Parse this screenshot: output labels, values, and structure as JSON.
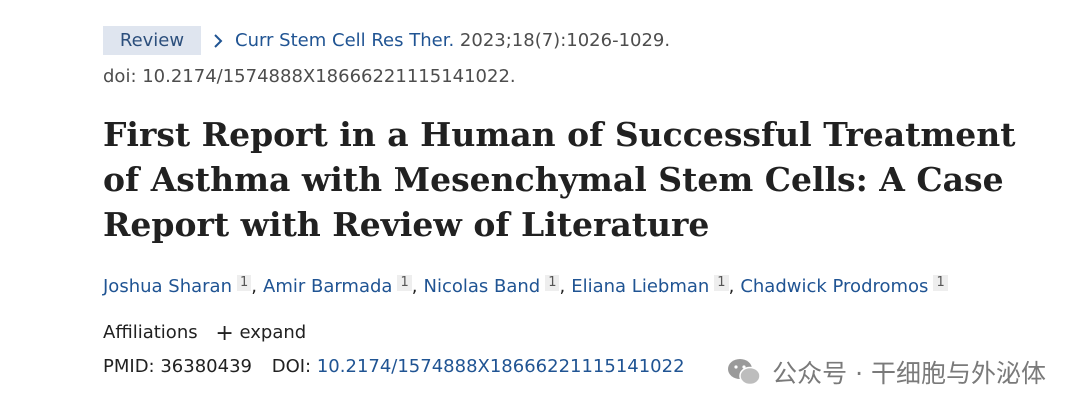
{
  "header": {
    "badge": "Review",
    "journal": "Curr Stem Cell Res Ther.",
    "citation": "2023;18(7):1026-1029.",
    "doi_line": "doi: 10.2174/1574888X18666221115141022."
  },
  "title": "First Report in a Human of Successful Treatment of Asthma with Mesenchymal Stem Cells: A Case Report with Review of Literature",
  "authors": {
    "separator": ",",
    "list": [
      {
        "name": "Joshua Sharan",
        "affiliation": "1"
      },
      {
        "name": "Amir Barmada",
        "affiliation": "1"
      },
      {
        "name": "Nicolas Band",
        "affiliation": "1"
      },
      {
        "name": "Eliana Liebman",
        "affiliation": "1"
      },
      {
        "name": "Chadwick Prodromos",
        "affiliation": "1"
      }
    ]
  },
  "affiliations": {
    "label": "Affiliations",
    "toggle": "expand"
  },
  "identifiers": {
    "pmid_label": "PMID:",
    "pmid": "36380439",
    "doi_label": "DOI:",
    "doi": "10.2174/1574888X18666221115141022"
  },
  "watermark": "公众号 · 干细胞与外泌体"
}
